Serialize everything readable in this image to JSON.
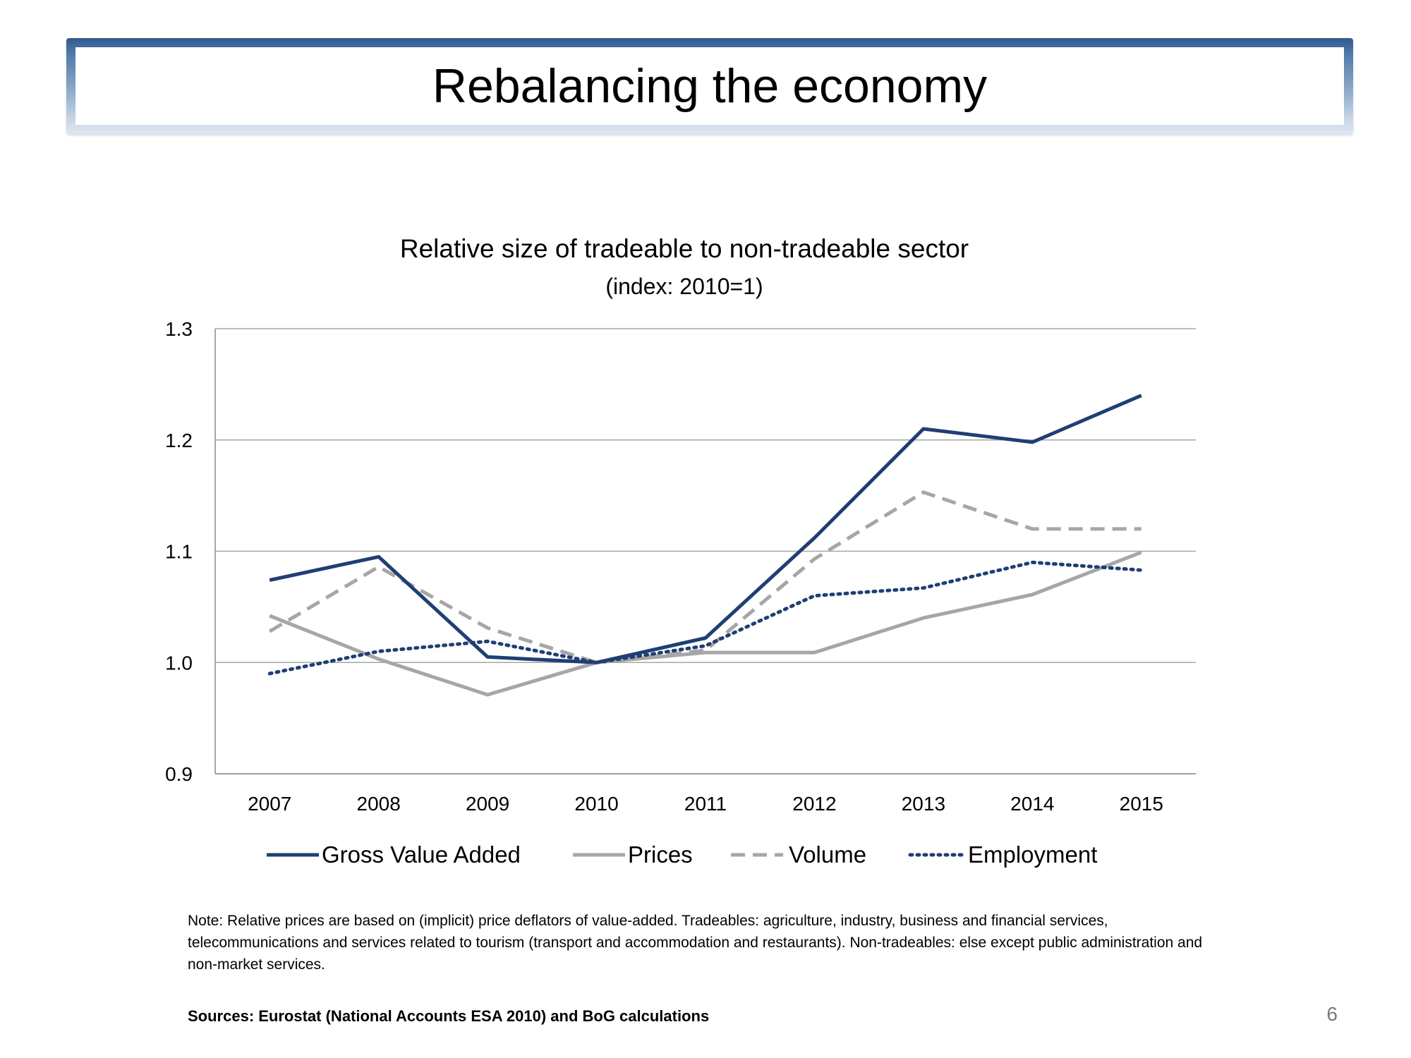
{
  "slide": {
    "title": "Rebalancing the economy",
    "note": "Note:  Relative prices are based on (implicit) price deflators of value-added. Tradeables: agriculture, industry, business and financial services, telecommunications and services related to tourism (transport and accommodation and restaurants).  Non-tradeables: else except public administration and non-market services.",
    "sources": "Sources: Eurostat (National Accounts ESA 2010) and BoG calculations",
    "page_number": "6"
  },
  "chart_data": {
    "type": "line",
    "title": "Relative size of tradeable to non-tradeable sector",
    "subtitle": "(index: 2010=1)",
    "categories": [
      "2007",
      "2008",
      "2009",
      "2010",
      "2011",
      "2012",
      "2013",
      "2014",
      "2015"
    ],
    "ylim": [
      0.9,
      1.3
    ],
    "yticks": [
      "0.9",
      "1.0",
      "1.1",
      "1.2",
      "1.3"
    ],
    "grid": true,
    "legend_position": "bottom",
    "series": [
      {
        "name": "Gross Value Added",
        "values": [
          1.074,
          1.095,
          1.005,
          1.0,
          1.022,
          1.112,
          1.21,
          1.198,
          1.24
        ],
        "color": "#1f3f73",
        "style": "solid"
      },
      {
        "name": "Prices",
        "values": [
          1.042,
          1.003,
          0.971,
          1.0,
          1.009,
          1.009,
          1.04,
          1.061,
          1.099
        ],
        "color": "#a6a6a6",
        "style": "solid"
      },
      {
        "name": "Volume",
        "values": [
          1.028,
          1.086,
          1.031,
          1.0,
          1.011,
          1.093,
          1.153,
          1.12,
          1.12
        ],
        "color": "#a6a6a6",
        "style": "dashed"
      },
      {
        "name": "Employment",
        "values": [
          0.99,
          1.01,
          1.019,
          1.0,
          1.015,
          1.06,
          1.067,
          1.09,
          1.083
        ],
        "color": "#1f3f73",
        "style": "dotted"
      }
    ]
  }
}
